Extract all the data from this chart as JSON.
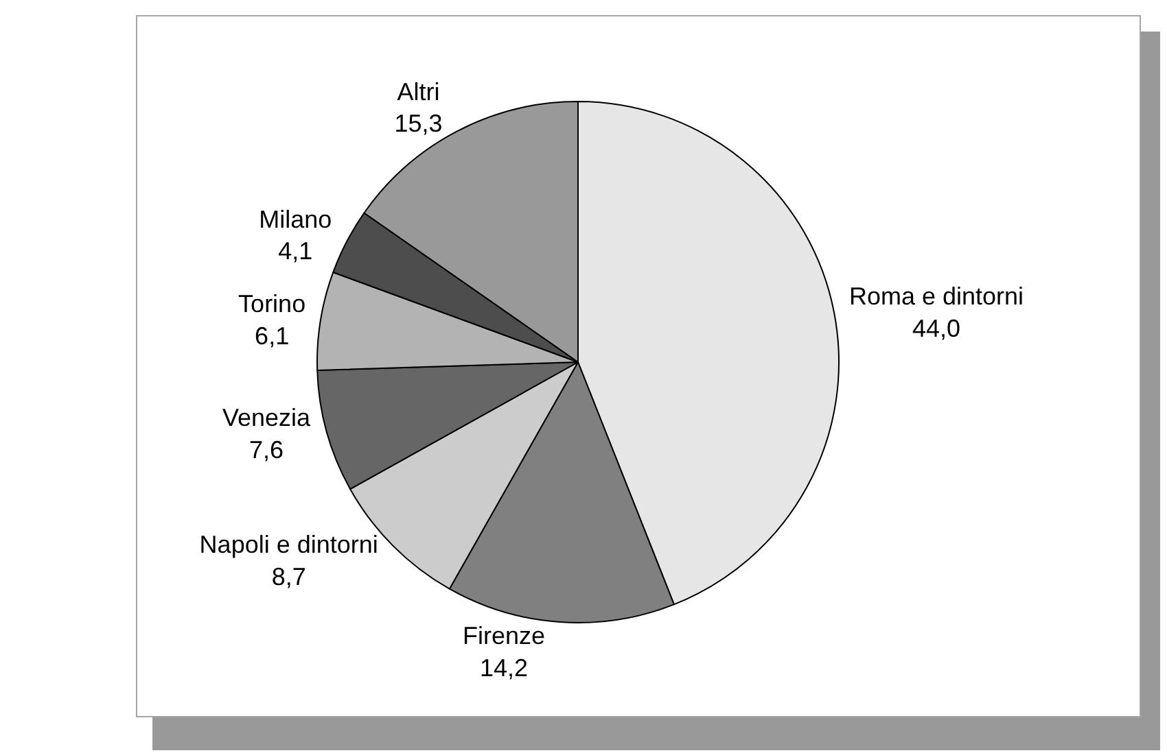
{
  "chart_data": {
    "type": "pie",
    "categories": [
      "Roma e dintorni",
      "Firenze",
      "Napoli e dintorni",
      "Venezia",
      "Torino",
      "Milano",
      "Altri"
    ],
    "values": [
      44.0,
      14.2,
      8.7,
      7.6,
      6.1,
      4.1,
      15.3
    ],
    "colors": [
      "#e6e6e6",
      "#808080",
      "#cccccc",
      "#666666",
      "#b3b3b3",
      "#4d4d4d",
      "#999999"
    ],
    "value_labels": [
      "44,0",
      "14,2",
      "8,7",
      "7,6",
      "6,1",
      "4,1",
      "15,3"
    ]
  }
}
